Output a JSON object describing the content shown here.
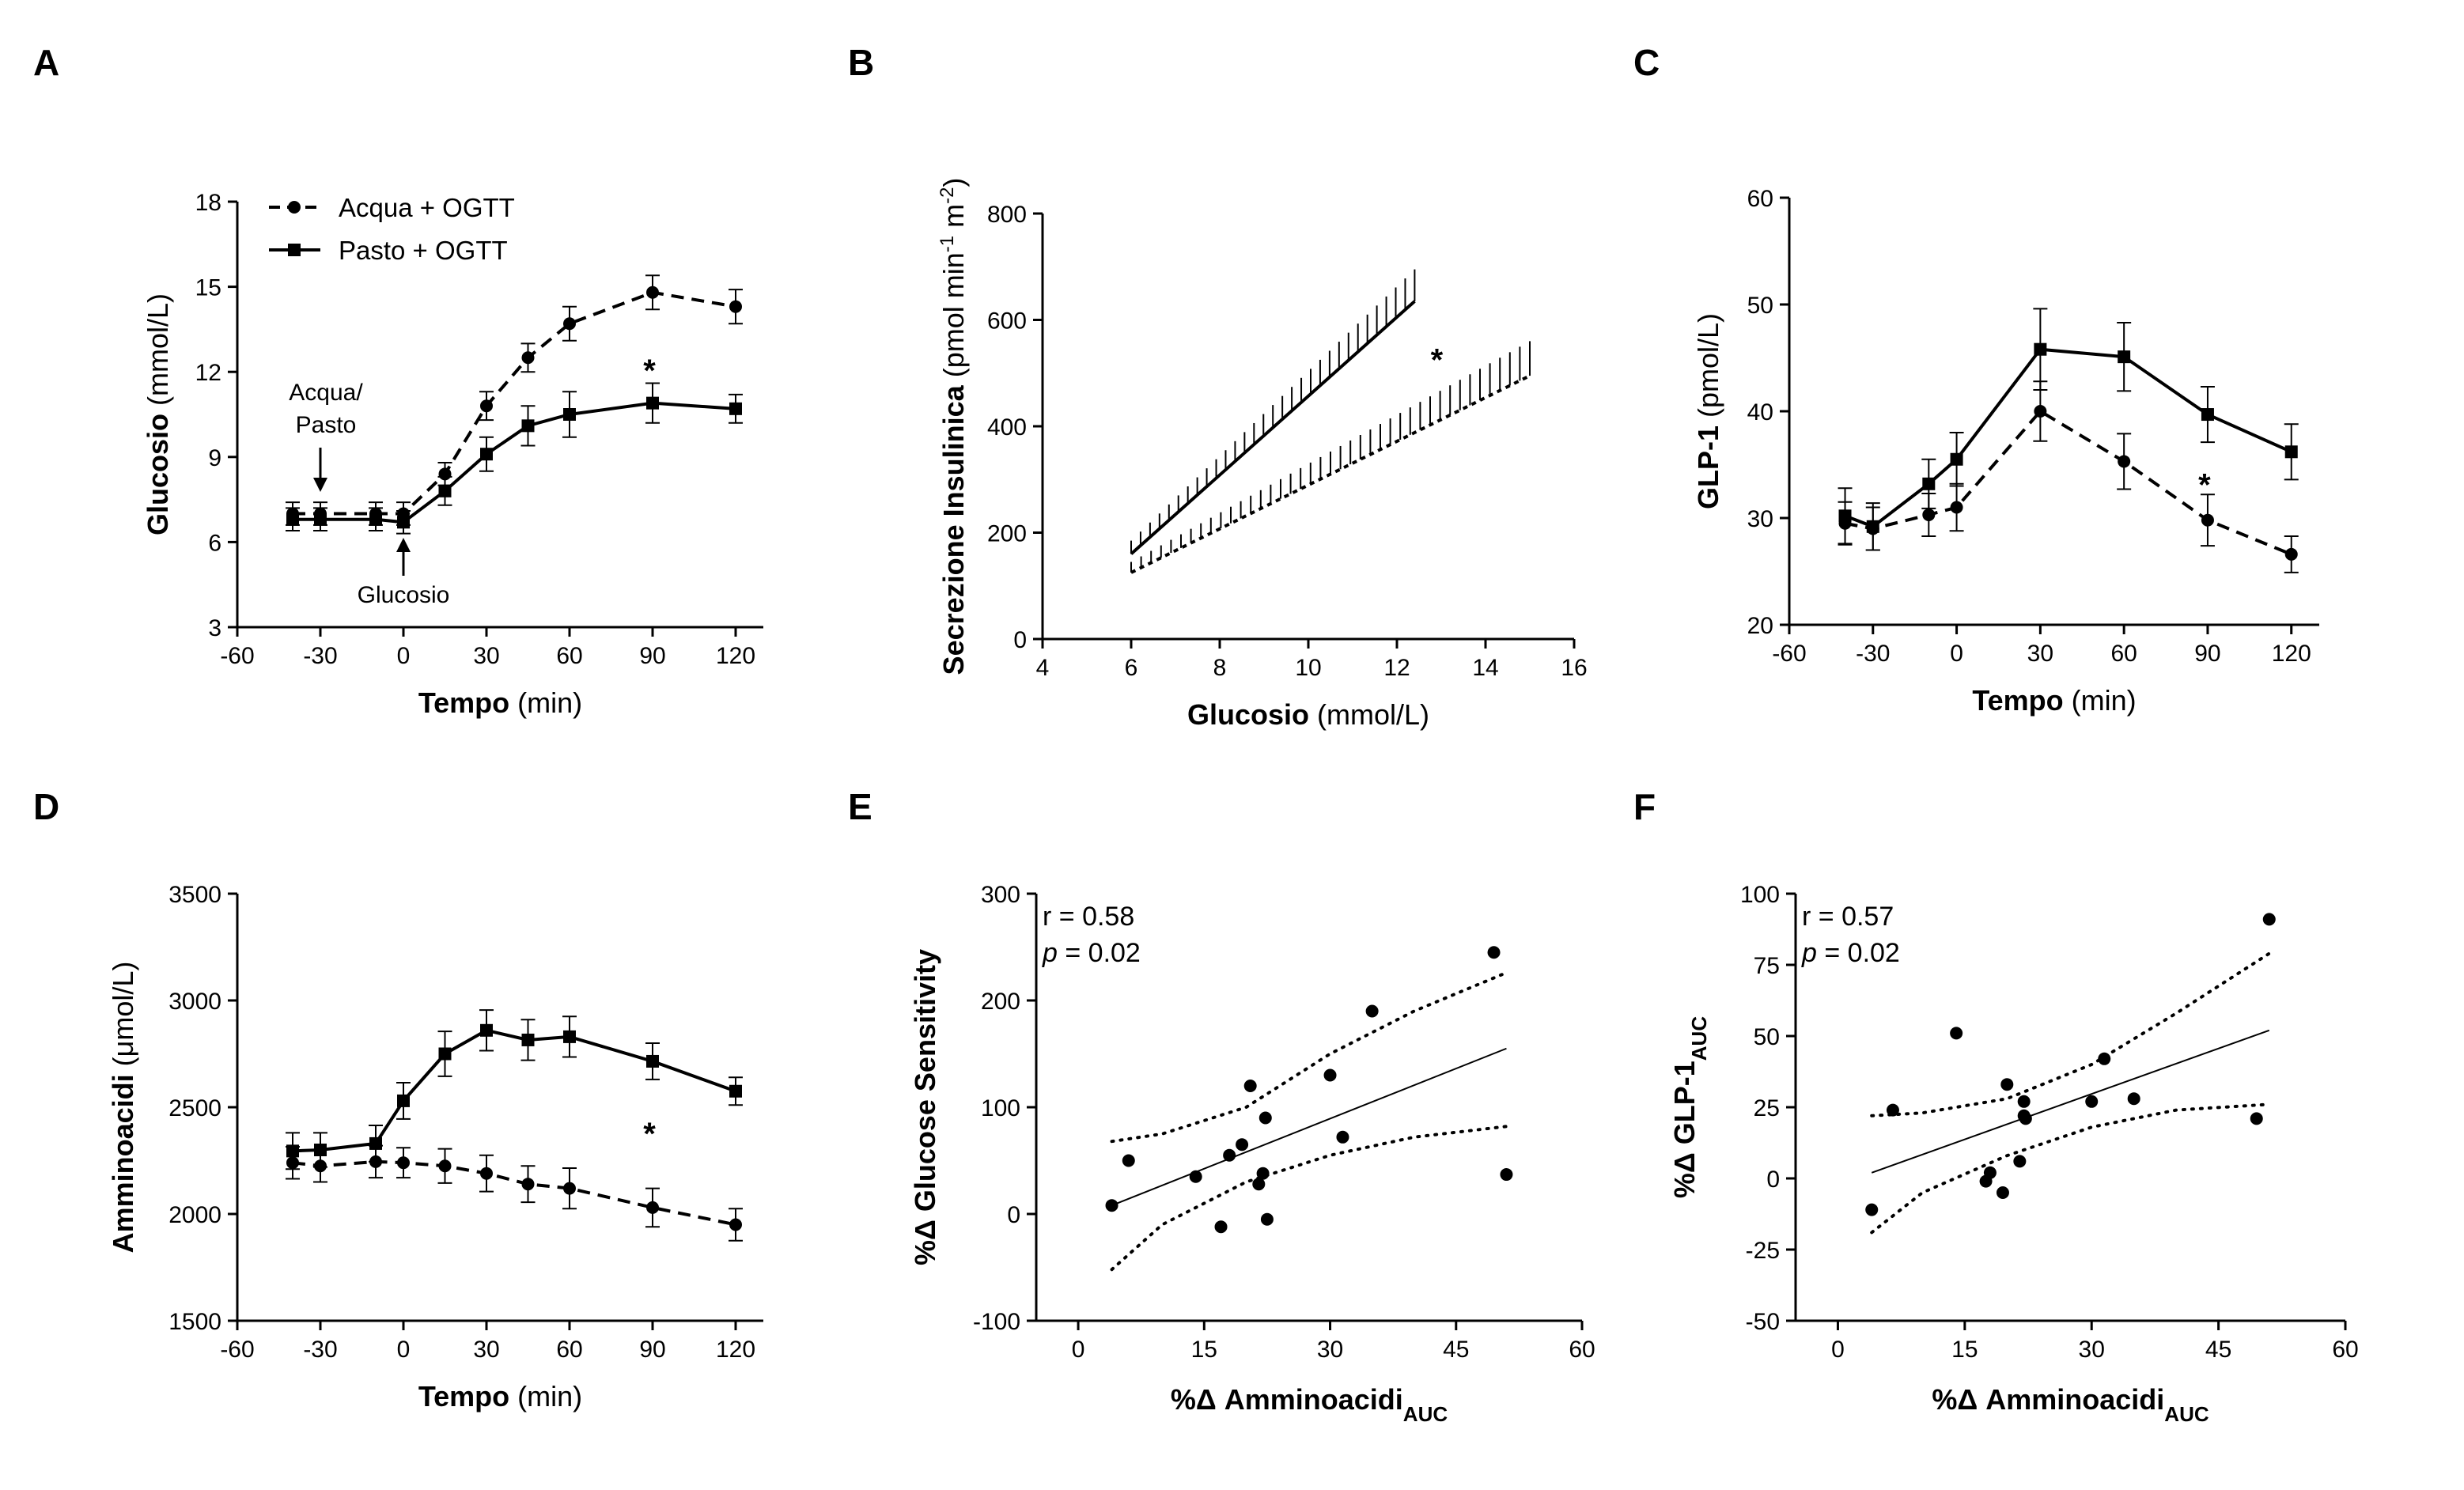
{
  "chart_data": [
    {
      "panel": "A",
      "type": "line",
      "xlabel_bold": "Tempo",
      "xlabel_rest": " (min)",
      "ylabel_bold": "Glucosio",
      "ylabel_rest": " (mmol/L)",
      "xlim": [
        -60,
        130
      ],
      "ylim": [
        3,
        18
      ],
      "xticks": [
        -60,
        -30,
        0,
        30,
        60,
        90,
        120
      ],
      "yticks": [
        3,
        6,
        9,
        12,
        15,
        18
      ],
      "legend": [
        "Acqua + OGTT",
        "Pasto + OGTT"
      ],
      "legend_position": "top-left",
      "series": [
        {
          "name": "Acqua + OGTT",
          "style": "dashed",
          "marker": "circle",
          "x": [
            -40,
            -30,
            -10,
            0,
            15,
            30,
            45,
            60,
            90,
            120
          ],
          "y": [
            7.0,
            7.0,
            7.0,
            7.0,
            8.4,
            10.8,
            12.5,
            13.7,
            14.8,
            14.3
          ],
          "err": [
            0.4,
            0.4,
            0.4,
            0.4,
            0.4,
            0.5,
            0.5,
            0.6,
            0.6,
            0.6
          ]
        },
        {
          "name": "Pasto + OGTT",
          "style": "solid",
          "marker": "square",
          "x": [
            -40,
            -30,
            -10,
            0,
            15,
            30,
            45,
            60,
            90,
            120
          ],
          "y": [
            6.8,
            6.8,
            6.8,
            6.7,
            7.8,
            9.1,
            10.1,
            10.5,
            10.9,
            10.7
          ],
          "err": [
            0.4,
            0.4,
            0.4,
            0.4,
            0.5,
            0.6,
            0.7,
            0.8,
            0.7,
            0.5
          ]
        }
      ],
      "annotations": {
        "arrow1": "Acqua/\nPasto",
        "arrow2": "Glucosio",
        "star": "*"
      }
    },
    {
      "panel": "B",
      "type": "line",
      "xlabel_bold": "Glucosio",
      "xlabel_rest": " (mmol/L)",
      "ylabel_bold": "Secrezione Insulinica",
      "ylabel_rest": " (pmol min",
      "ylabel_sup1": "-1",
      "ylabel_mid": " m",
      "ylabel_sup2": "-2",
      "ylabel_end": ")",
      "xlim": [
        4,
        16
      ],
      "ylim": [
        0,
        800
      ],
      "xticks": [
        4,
        6,
        8,
        10,
        12,
        14,
        16
      ],
      "yticks": [
        0,
        200,
        400,
        600,
        800
      ],
      "series": [
        {
          "style": "solid",
          "x": [
            6,
            12.4
          ],
          "y": [
            160,
            635
          ],
          "err_upper": [
            25,
            60
          ]
        },
        {
          "style": "dashed",
          "x": [
            6,
            15
          ],
          "y": [
            125,
            495
          ],
          "err_upper": [
            20,
            65
          ]
        }
      ],
      "annotations": {
        "star": "*"
      }
    },
    {
      "panel": "C",
      "type": "line",
      "xlabel_bold": "Tempo",
      "xlabel_rest": " (min)",
      "ylabel_bold": "GLP-1",
      "ylabel_rest": " (pmol/L)",
      "xlim": [
        -60,
        130
      ],
      "ylim": [
        20,
        60
      ],
      "xticks": [
        -60,
        -30,
        0,
        30,
        60,
        90,
        120
      ],
      "yticks": [
        20,
        30,
        40,
        50,
        60
      ],
      "series": [
        {
          "style": "dashed",
          "marker": "circle",
          "x": [
            -40,
            -30,
            -10,
            0,
            30,
            60,
            90,
            120
          ],
          "y": [
            29.5,
            29.0,
            30.3,
            31.0,
            40.0,
            35.3,
            29.8,
            26.6
          ],
          "err": [
            2.0,
            2.0,
            2.0,
            2.2,
            2.8,
            2.6,
            2.4,
            1.7
          ]
        },
        {
          "style": "solid",
          "marker": "square",
          "x": [
            -40,
            -30,
            -10,
            0,
            30,
            60,
            90,
            120
          ],
          "y": [
            30.2,
            29.2,
            33.2,
            35.5,
            45.8,
            45.1,
            39.7,
            36.2
          ],
          "err": [
            2.6,
            2.2,
            2.3,
            2.5,
            3.8,
            3.2,
            2.6,
            2.6
          ]
        }
      ],
      "annotations": {
        "star": "*"
      }
    },
    {
      "panel": "D",
      "type": "line",
      "xlabel_bold": "Tempo",
      "xlabel_rest": " (min)",
      "ylabel_bold": "Amminoacidi",
      "ylabel_rest": " (μmol/L)",
      "xlim": [
        -60,
        130
      ],
      "ylim": [
        1500,
        3500
      ],
      "xticks": [
        -60,
        -30,
        0,
        30,
        60,
        90,
        120
      ],
      "yticks": [
        1500,
        2000,
        2500,
        3000,
        3500
      ],
      "series": [
        {
          "style": "dashed",
          "marker": "circle",
          "x": [
            -40,
            -30,
            -10,
            0,
            15,
            30,
            45,
            60,
            90,
            120
          ],
          "y": [
            2240,
            2225,
            2245,
            2240,
            2225,
            2190,
            2140,
            2120,
            2030,
            1950
          ],
          "err": [
            75,
            75,
            75,
            70,
            80,
            85,
            85,
            95,
            90,
            75
          ]
        },
        {
          "style": "solid",
          "marker": "square",
          "x": [
            -40,
            -30,
            -10,
            0,
            15,
            30,
            45,
            60,
            90,
            120
          ],
          "y": [
            2295,
            2300,
            2330,
            2530,
            2750,
            2860,
            2815,
            2830,
            2715,
            2575
          ],
          "err": [
            85,
            80,
            85,
            85,
            105,
            95,
            95,
            95,
            85,
            65
          ]
        }
      ],
      "annotations": {
        "star": "*"
      }
    },
    {
      "panel": "E",
      "type": "scatter",
      "xlabel": "%Δ Amminoacidi",
      "xlabel_sub": "AUC",
      "ylabel": "%Δ Glucose Sensitivity",
      "xlim": [
        -5,
        60
      ],
      "ylim": [
        -100,
        300
      ],
      "xticks": [
        0,
        15,
        30,
        45,
        60
      ],
      "yticks": [
        -100,
        0,
        100,
        200,
        300
      ],
      "points": [
        [
          4,
          8
        ],
        [
          6,
          50
        ],
        [
          14,
          35
        ],
        [
          17,
          -12
        ],
        [
          18,
          55
        ],
        [
          19.5,
          65
        ],
        [
          20.5,
          120
        ],
        [
          21.5,
          28
        ],
        [
          22,
          38
        ],
        [
          22.3,
          90
        ],
        [
          22.5,
          -5
        ],
        [
          30,
          130
        ],
        [
          31.5,
          72
        ],
        [
          35,
          190
        ],
        [
          49.5,
          245
        ],
        [
          51,
          37
        ]
      ],
      "fit": {
        "x": [
          4,
          51
        ],
        "y": [
          8,
          155
        ]
      },
      "ci_upper": {
        "x": [
          4,
          10,
          20,
          30,
          40,
          51
        ],
        "y": [
          68,
          75,
          100,
          150,
          190,
          226
        ]
      },
      "ci_lower": {
        "x": [
          4,
          10,
          20,
          30,
          40,
          51
        ],
        "y": [
          -52,
          -10,
          30,
          55,
          72,
          82
        ]
      },
      "stats": {
        "r": "r = 0.58",
        "p_label": "p",
        "p_rest": " = 0.02"
      }
    },
    {
      "panel": "F",
      "type": "scatter",
      "xlabel": "%Δ Amminoacidi",
      "xlabel_sub": "AUC",
      "ylabel": "%Δ GLP-1",
      "ylabel_sub": "AUC",
      "xlim": [
        -5,
        60
      ],
      "ylim": [
        -50,
        100
      ],
      "xticks": [
        0,
        15,
        30,
        45,
        60
      ],
      "yticks": [
        -50,
        -25,
        0,
        25,
        50,
        75,
        100
      ],
      "points": [
        [
          4,
          -11
        ],
        [
          6.5,
          24
        ],
        [
          14,
          51
        ],
        [
          17.5,
          -1
        ],
        [
          18,
          2
        ],
        [
          19.5,
          -5
        ],
        [
          20,
          33
        ],
        [
          21.5,
          6
        ],
        [
          22,
          27
        ],
        [
          22,
          22
        ],
        [
          22.2,
          21
        ],
        [
          30,
          27
        ],
        [
          31.5,
          42
        ],
        [
          35,
          28
        ],
        [
          49.5,
          21
        ],
        [
          51,
          91
        ]
      ],
      "fit": {
        "x": [
          4,
          51
        ],
        "y": [
          2,
          52
        ]
      },
      "ci_upper": {
        "x": [
          4,
          10,
          20,
          30,
          40,
          51
        ],
        "y": [
          22,
          23,
          28,
          40,
          58,
          79
        ]
      },
      "ci_lower": {
        "x": [
          4,
          10,
          20,
          30,
          40,
          51
        ],
        "y": [
          -19,
          -5,
          8,
          18,
          24,
          26
        ]
      },
      "stats": {
        "r": "r = 0.57",
        "p_label": "p",
        "p_rest": " = 0.02"
      }
    }
  ]
}
